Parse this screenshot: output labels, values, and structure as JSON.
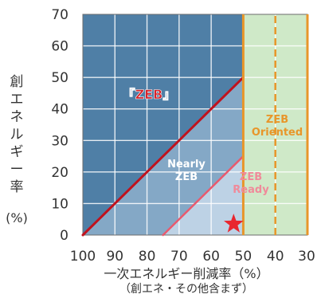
{
  "chart_data": {
    "type": "line",
    "title": "",
    "xlabel": "一次エネルギー削減率（%）",
    "xlabel_sub": "（創エネ・その他含まず）",
    "ylabel": "創エネルギー率",
    "ylabel_unit": "(%)",
    "xlim": [
      100,
      30
    ],
    "ylim": [
      0,
      70
    ],
    "x_ticks": [
      100,
      90,
      80,
      70,
      60,
      50,
      40,
      30
    ],
    "y_ticks": [
      0,
      10,
      20,
      30,
      40,
      50,
      60,
      70
    ],
    "grid": true,
    "series": [
      {
        "name": "『ZEB』",
        "x": [
          100,
          50
        ],
        "y": [
          0,
          50
        ]
      },
      {
        "name": "Nearly ZEB",
        "x": [
          75,
          50
        ],
        "y": [
          0,
          25
        ]
      },
      {
        "name": "ZEB Ready",
        "x": [
          50,
          50
        ],
        "y": [
          0,
          70
        ]
      },
      {
        "name": "ZEB Oriented",
        "x": [
          40,
          40
        ],
        "y": [
          0,
          70
        ]
      }
    ],
    "regions": [
      {
        "label": "『ZEB』",
        "color": "#4f7fa6"
      },
      {
        "label": "Nearly ZEB",
        "color": "#84a8c6"
      },
      {
        "label": "ZEB Ready",
        "color": "#bdd2e5"
      },
      {
        "label": "ZEB Oriented",
        "color": "#cfe9c8"
      }
    ],
    "marker": {
      "shape": "star",
      "x": 53,
      "y": 3.5,
      "color": "#e8262f"
    }
  },
  "colors": {
    "zeb_line": "#c0121d",
    "nearly_line": "#e85a6e",
    "oriented_line": "#e8962a",
    "zeb_label": "#d62027",
    "nearly_label": "#ffffff",
    "ready_label": "#f08a9a",
    "oriented_label": "#e8962a"
  }
}
